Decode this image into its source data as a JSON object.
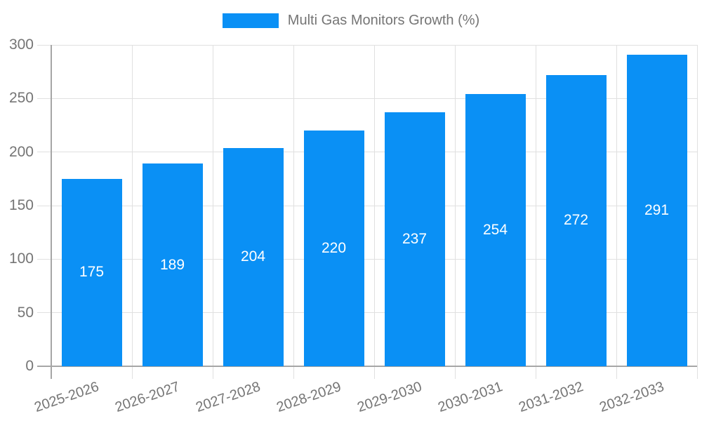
{
  "chart_data": {
    "type": "bar",
    "title": "",
    "legend": {
      "label": "Multi Gas Monitors Growth (%)",
      "position": "top-center"
    },
    "categories": [
      "2025-2026",
      "2026-2027",
      "2027-2028",
      "2028-2029",
      "2029-2030",
      "2030-2031",
      "2031-2032",
      "2032-2033"
    ],
    "values": [
      175,
      189,
      204,
      220,
      237,
      254,
      272,
      291
    ],
    "value_labels_shown": true,
    "xlabel": "",
    "ylabel": "",
    "ylim": [
      0,
      300
    ],
    "yticks": [
      0,
      50,
      100,
      150,
      200,
      250,
      300
    ],
    "grid": true,
    "colors": {
      "bar": "#0a90f5",
      "value_label": "#ffffff",
      "axis_text": "#757575",
      "grid_line": "#e0e0e0",
      "axis_line": "#a6a6a6"
    }
  }
}
